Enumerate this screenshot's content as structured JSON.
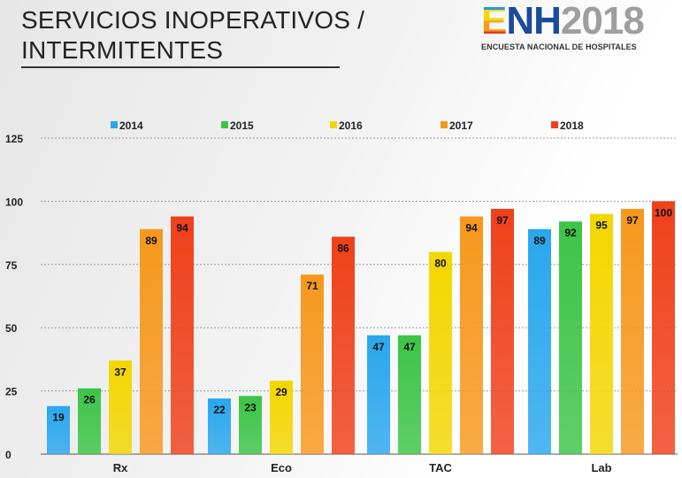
{
  "slide": {
    "title_line1": "SERVICIOS INOPERATIVOS /",
    "title_line2": "INTERMITENTES"
  },
  "logo": {
    "e": "E",
    "nh": "NH",
    "year": "2018",
    "subtitle": "ENCUESTA NACIONAL DE HOSPITALES",
    "stripe_colors": [
      "#1e9be9",
      "#f4d600",
      "#f59a1c",
      "#e8391a"
    ],
    "nh_color": "#1a4a9a",
    "year_color": "#9e9e9e"
  },
  "chart_data": {
    "type": "bar",
    "categories": [
      "Rx",
      "Eco",
      "TAC",
      "Lab"
    ],
    "series": [
      {
        "name": "2014",
        "values": [
          19,
          22,
          47,
          89
        ],
        "color": "#29a7ee"
      },
      {
        "name": "2015",
        "values": [
          26,
          23,
          47,
          92
        ],
        "color": "#3cc447"
      },
      {
        "name": "2016",
        "values": [
          37,
          29,
          80,
          95
        ],
        "color": "#f4d600"
      },
      {
        "name": "2017",
        "values": [
          89,
          71,
          94,
          97
        ],
        "color": "#f7981d"
      },
      {
        "name": "2018",
        "values": [
          94,
          86,
          97,
          100
        ],
        "color": "#f0401a"
      }
    ],
    "yticks": [
      0,
      25,
      50,
      75,
      100,
      125
    ],
    "ylim": [
      0,
      125
    ],
    "grid": true,
    "legend_position": "top"
  }
}
